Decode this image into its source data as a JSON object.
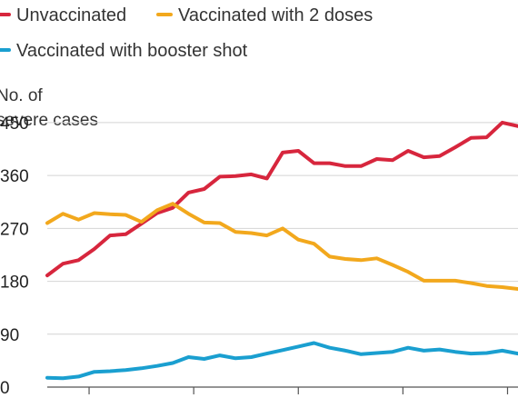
{
  "chart_data": {
    "type": "line",
    "ylabel_lines": [
      "No. of",
      "severe cases"
    ],
    "yticks": [
      0,
      90,
      180,
      270,
      360,
      450
    ],
    "ylim": [
      0,
      470
    ],
    "xlim": [
      0,
      45
    ],
    "x_tick_positions": [
      4,
      14,
      24,
      34,
      44
    ],
    "grid": true,
    "legend_position": "top",
    "series": [
      {
        "name": "Unvaccinated",
        "color": "#d7263d",
        "values": [
          190,
          210,
          216,
          235,
          258,
          260,
          278,
          296,
          305,
          331,
          337,
          358,
          359,
          362,
          355,
          399,
          402,
          381,
          381,
          376,
          376,
          388,
          386,
          402,
          391,
          393,
          408,
          424,
          425,
          450,
          444
        ]
      },
      {
        "name": "Vaccinated with 2 doses",
        "color": "#f2a81d",
        "values": [
          279,
          295,
          285,
          296,
          294,
          293,
          281,
          301,
          312,
          295,
          280,
          279,
          264,
          262,
          258,
          270,
          251,
          244,
          222,
          218,
          216,
          219,
          208,
          196,
          181,
          181,
          181,
          177,
          172,
          170,
          167
        ]
      },
      {
        "name": "Vaccinated with booster shot",
        "color": "#1a9fd0",
        "values": [
          16,
          15,
          18,
          26,
          27,
          29,
          32,
          36,
          41,
          51,
          48,
          54,
          49,
          51,
          57,
          63,
          69,
          75,
          67,
          62,
          56,
          58,
          60,
          67,
          62,
          64,
          60,
          57,
          58,
          62,
          57
        ]
      }
    ]
  }
}
